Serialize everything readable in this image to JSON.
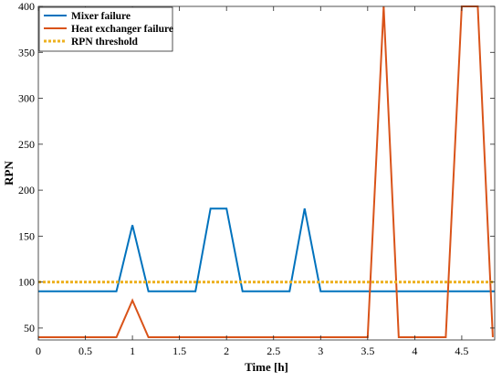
{
  "chart_data": {
    "type": "line",
    "xlabel": "Time [h]",
    "ylabel": "RPN",
    "xlim": [
      0,
      4.85
    ],
    "ylim": [
      37,
      400
    ],
    "x_ticks": [
      0,
      0.5,
      1,
      1.5,
      2,
      2.5,
      3,
      3.5,
      4,
      4.5
    ],
    "x_tick_labels": [
      "0",
      "0.5",
      "1",
      "1.5",
      "2",
      "2.5",
      "3",
      "3.5",
      "4",
      "4.5"
    ],
    "y_ticks": [
      50,
      100,
      150,
      200,
      250,
      300,
      350,
      400
    ],
    "y_tick_labels": [
      "50",
      "100",
      "150",
      "200",
      "250",
      "300",
      "350",
      "400"
    ],
    "legend_position": "top-left",
    "series": [
      {
        "name": "Mixer failure",
        "color": "#0072BD",
        "style": "solid",
        "x": [
          0,
          0.83,
          1.0,
          1.17,
          1.67,
          1.83,
          2.0,
          2.17,
          2.67,
          2.83,
          3.0,
          4.85
        ],
        "y": [
          90,
          90,
          162,
          90,
          90,
          180,
          180,
          90,
          90,
          180,
          90,
          90
        ]
      },
      {
        "name": "Heat exchanger failure",
        "color": "#D95319",
        "style": "solid",
        "x": [
          0,
          0.83,
          1.0,
          1.17,
          3.5,
          3.67,
          3.83,
          4.33,
          4.5,
          4.67,
          4.83
        ],
        "y": [
          40,
          40,
          80,
          40,
          40,
          400,
          40,
          40,
          400,
          400,
          40
        ]
      },
      {
        "name": "RPN threshold",
        "color": "#EDB120",
        "style": "dotted",
        "x": [
          0,
          4.85
        ],
        "y": [
          100,
          100
        ]
      }
    ]
  }
}
